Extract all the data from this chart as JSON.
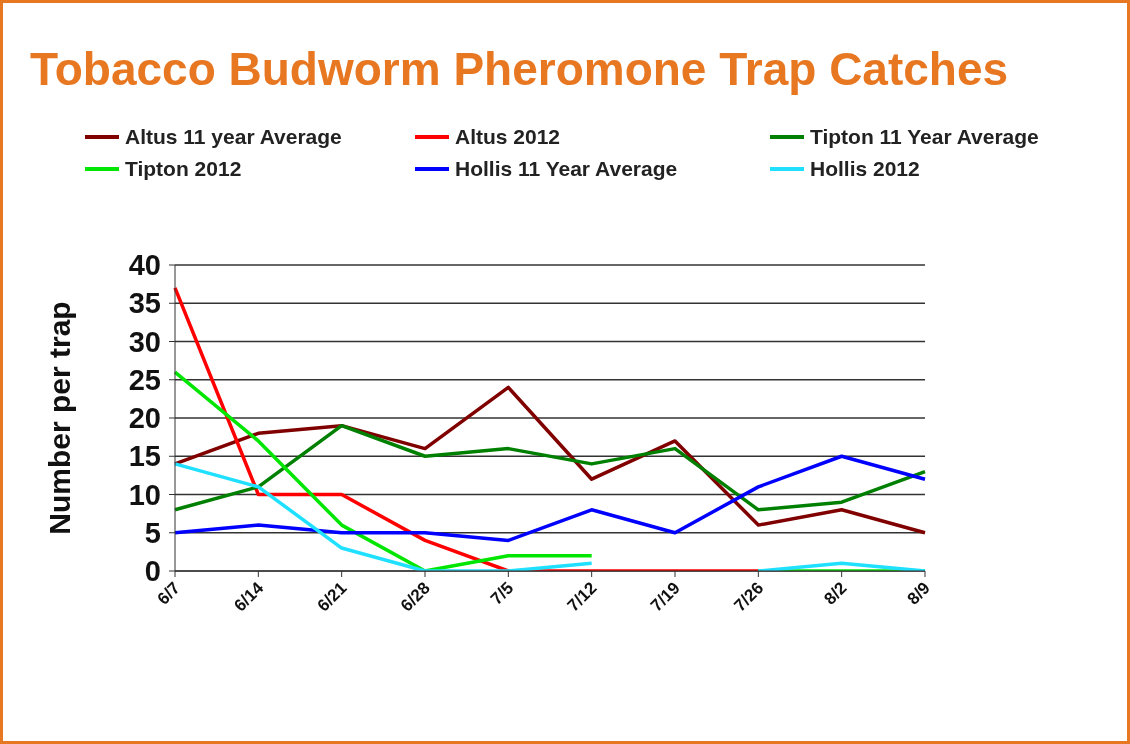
{
  "chart_data": {
    "type": "line",
    "title": "Tobacco Budworm Pheromone Trap Catches",
    "ylabel": "Number per trap",
    "categories": [
      "6/7",
      "6/14",
      "6/21",
      "6/28",
      "7/5",
      "7/12",
      "7/19",
      "7/26",
      "8/2",
      "8/9"
    ],
    "series": [
      {
        "name": "Altus 11 year Average",
        "color": "#800000",
        "values": [
          14,
          18,
          19,
          16,
          24,
          12,
          17,
          6,
          8,
          5
        ]
      },
      {
        "name": "Altus 2012",
        "color": "#ff0000",
        "values": [
          37,
          10,
          10,
          4,
          0,
          0,
          0,
          0,
          null,
          null
        ]
      },
      {
        "name": "Tipton 11 Year Average",
        "color": "#008000",
        "values": [
          8,
          11,
          19,
          15,
          16,
          14,
          16,
          8,
          9,
          13
        ]
      },
      {
        "name": "Tipton 2012",
        "color": "#00e600",
        "values": [
          26,
          17,
          6,
          0,
          2,
          2,
          null,
          0,
          0,
          0
        ]
      },
      {
        "name": "Hollis 11 Year Average",
        "color": "#0000ff",
        "values": [
          5,
          6,
          5,
          5,
          4,
          8,
          5,
          11,
          15,
          12
        ]
      },
      {
        "name": "Hollis 2012",
        "color": "#1fe0ff",
        "values": [
          14,
          11,
          3,
          0,
          0,
          1,
          null,
          0,
          1,
          0
        ]
      }
    ],
    "ylim": [
      0,
      40
    ],
    "yticks": [
      0,
      5,
      10,
      15,
      20,
      25,
      30,
      35,
      40
    ],
    "grid": "y",
    "legend": "top",
    "marker": "none",
    "line_style": "solid"
  }
}
